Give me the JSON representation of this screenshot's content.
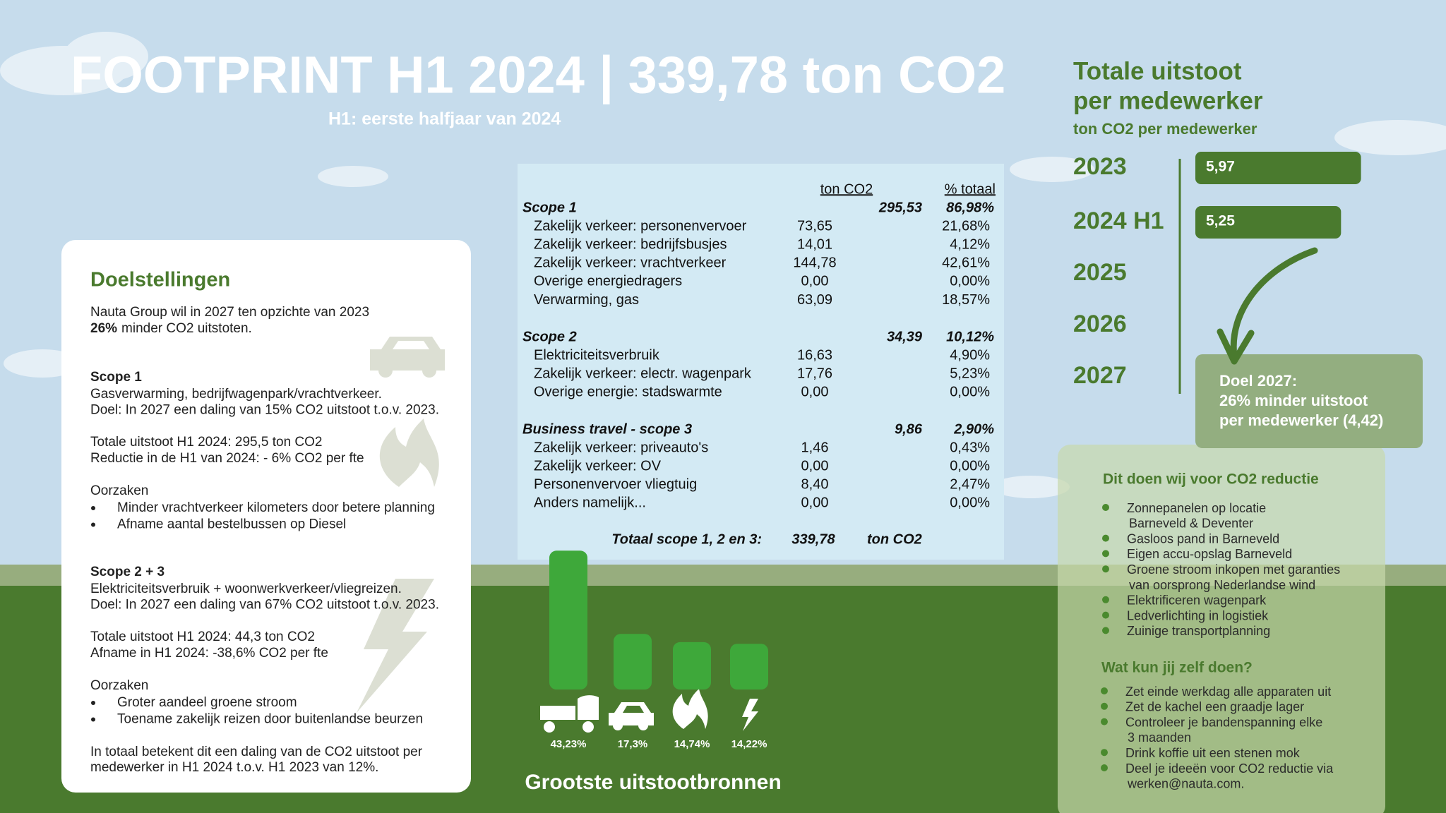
{
  "header": {
    "title": "FOOTPRINT H1 2024 | 339,78 ton CO2",
    "subtitle": "H1: eerste halfjaar van 2024"
  },
  "goals": {
    "heading": "Doelstellingen",
    "intro": "Nauta Group wil in 2027 ten opzichte van 2023",
    "intro_bold": "26%",
    "intro_rest": "minder CO2 uitstoten.",
    "blocks": [
      {
        "title": "Scope 1",
        "lines": [
          "Gasverwarming, bedrijfwagenpark/vrachtverkeer.",
          "Doel: In 2027 een daling van 15% CO2 uitstoot t.o.v. 2023."
        ],
        "totals": [
          "Totale uitstoot H1 2024: 295,5 ton CO2",
          "Reductie in de H1 van 2024: - 6% CO2 per fte"
        ],
        "causes_title": "Oorzaken",
        "causes": [
          "Minder vrachtverkeer kilometers door betere planning",
          "Afname aantal bestelbussen op Diesel"
        ]
      },
      {
        "title": "Scope  2 + 3",
        "lines": [
          "Elektriciteitsverbruik + woonwerkverkeer/vliegreizen.",
          "Doel: In 2027 een daling van 67% CO2 uitstoot t.o.v. 2023."
        ],
        "totals": [
          "Totale uitstoot H1 2024: 44,3 ton CO2",
          "Afname in H1 2024: -38,6% CO2 per fte"
        ],
        "causes_title": "Oorzaken",
        "causes": [
          "Groter aandeel groene stroom",
          "Toename zakelijk reizen door buitenlandse beurzen"
        ]
      }
    ],
    "conclusion": [
      "In totaal betekent dit een daling van de CO2 uitstoot per",
      "medewerker in H1 2024 t.o.v. H1 2023 van 12%."
    ]
  },
  "table": {
    "header": [
      "ton CO2",
      "% totaal"
    ],
    "sections": [
      {
        "name": "Scope 1",
        "total": "295,53",
        "share": "86,98%",
        "items": [
          [
            "Zakelijk verkeer: personenvervoer",
            "73,65",
            "21,68%"
          ],
          [
            "Zakelijk verkeer: bedrijfsbusjes",
            "14,01",
            "4,12%"
          ],
          [
            "Zakelijk verkeer: vrachtverkeer",
            "144,78",
            "42,61%"
          ],
          [
            "Overige energiedragers",
            "0,00",
            "0,00%"
          ],
          [
            "Verwarming, gas",
            "63,09",
            "18,57%"
          ]
        ]
      },
      {
        "name": "Scope 2",
        "total": "34,39",
        "share": "10,12%",
        "items": [
          [
            "Elektriciteitsverbruik",
            "16,63",
            "4,90%"
          ],
          [
            "Zakelijk verkeer: electr. wagenpark",
            "17,76",
            "5,23%"
          ],
          [
            "Overige energie: stadswarmte",
            "0,00",
            "0,00%"
          ]
        ]
      },
      {
        "name": "Business travel - scope 3",
        "total": "9,86",
        "share": "2,90%",
        "items": [
          [
            "Zakelijk verkeer: priveauto's",
            "1,46",
            "0,43%"
          ],
          [
            "Zakelijk verkeer: OV",
            "0,00",
            "0,00%"
          ],
          [
            "Personenvervoer vliegtuig",
            "8,40",
            "2,47%"
          ],
          [
            "Anders namelijk...",
            "0,00",
            "0,00%"
          ]
        ]
      }
    ],
    "total": {
      "label": "Totaal scope 1, 2 en 3:",
      "value": "339,78",
      "unit": "ton CO2"
    }
  },
  "per_employee": {
    "title": [
      "Totale uitstoot",
      "per medewerker"
    ],
    "unit": "ton CO2 per medewerker",
    "years": [
      "2023",
      "2024 H1",
      "2025",
      "2026",
      "2027"
    ],
    "values": [
      5.97,
      5.25,
      null,
      null,
      null
    ],
    "value_labels": [
      "5,97",
      "5,25",
      null,
      null,
      null
    ],
    "color": "#4a7a2e",
    "goal": [
      "Doel 2027:",
      "26% minder uitstoot",
      "per medewerker (4,42)"
    ]
  },
  "sources": {
    "title": "Grootste uitstootbronnen",
    "values": [
      43.23,
      17.3,
      14.74,
      14.22
    ],
    "value_labels": [
      "43,23%",
      "17,3%",
      "14,74%",
      "14,22%"
    ],
    "color": "#3ea83a"
  },
  "actions": {
    "heading": "Dit doen wij voor CO2 reductie",
    "items": [
      [
        "Zonnepanelen op locatie",
        "Barneveld & Deventer"
      ],
      [
        "Gasloos pand in Barneveld"
      ],
      [
        "Eigen accu-opslag Barneveld"
      ],
      [
        "Groene stroom inkopen met garanties",
        "van oorsprong Nederlandse wind"
      ],
      [
        "Elektrificeren wagenpark"
      ],
      [
        "Ledverlichting in logistiek"
      ],
      [
        "Zuinige transportplanning"
      ]
    ]
  },
  "tips": {
    "heading": "Wat kun jij zelf doen?",
    "items": [
      [
        "Zet einde werkdag alle apparaten uit"
      ],
      [
        "Zet de kachel een graadje lager"
      ],
      [
        "Controleer je bandenspanning elke",
        "3 maanden"
      ],
      [
        "Drink koffie uit een stenen mok"
      ],
      [
        "Deel je ideeën voor CO2 reductie via",
        "werken@nauta.com."
      ]
    ]
  }
}
